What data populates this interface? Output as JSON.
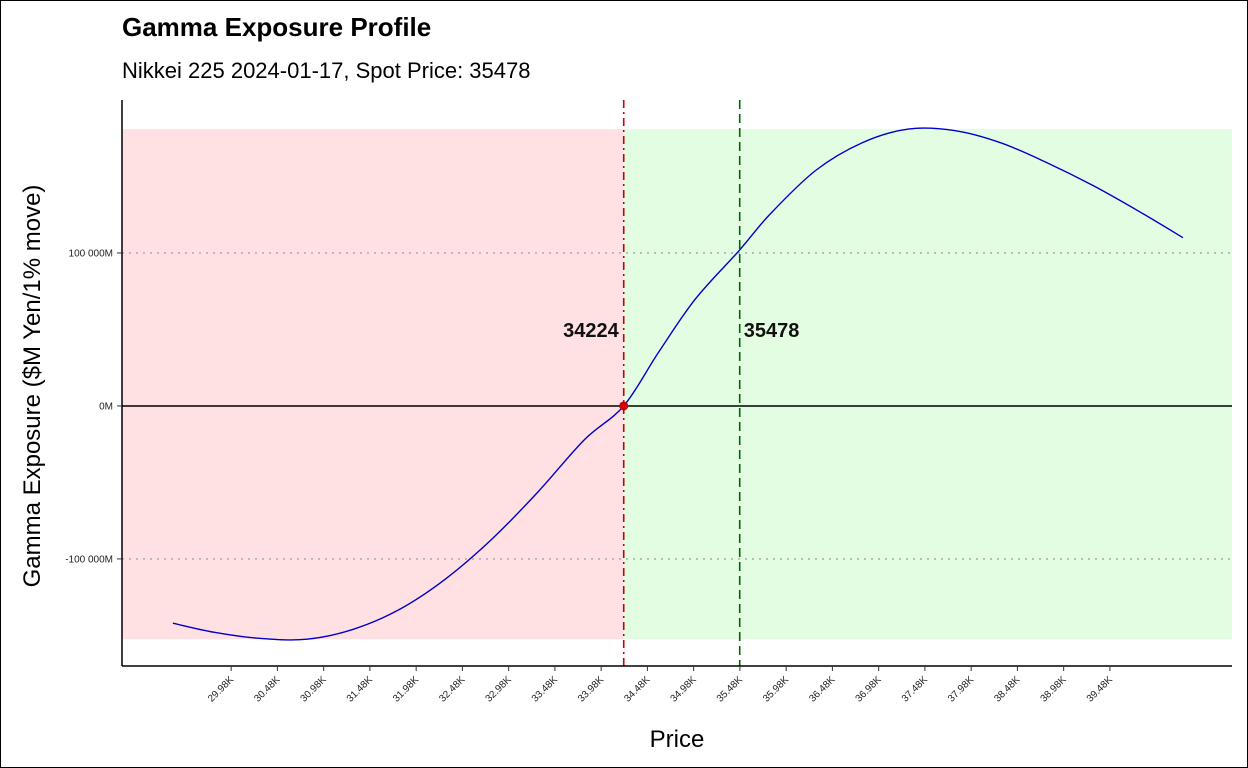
{
  "chart_data": {
    "type": "line",
    "title": "Gamma Exposure Profile",
    "subtitle": "Nikkei 225 2024-01-17, Spot Price: 35478",
    "xlabel": "Price",
    "ylabel": "Gamma Exposure ($M Yen/1% move)",
    "xlim": [
      28800,
      40800
    ],
    "ylim": [
      -170000,
      200000
    ],
    "x_ticks": [
      29980,
      30480,
      30980,
      31480,
      31980,
      32480,
      32980,
      33480,
      33980,
      34480,
      34980,
      35480,
      35980,
      36480,
      36980,
      37480,
      37980,
      38480,
      38980,
      39480
    ],
    "x_tick_labels": [
      "29.98K",
      "30.48K",
      "30.98K",
      "31.48K",
      "31.98K",
      "32.48K",
      "32.98K",
      "33.48K",
      "33.98K",
      "34.48K",
      "34.98K",
      "35.48K",
      "35.98K",
      "36.48K",
      "36.98K",
      "37.48K",
      "37.98K",
      "38.48K",
      "38.98K",
      "39.48K"
    ],
    "y_ticks": [
      -100000,
      0,
      100000
    ],
    "y_tick_labels": [
      "-100 000M",
      "0M",
      "100 000M"
    ],
    "grid": "horizontal-dotted",
    "series": [
      {
        "color": "#0000cc",
        "x": [
          29350,
          29800,
          30300,
          30800,
          31300,
          31800,
          32300,
          32800,
          33300,
          33800,
          34224,
          34600,
          35000,
          35478,
          35800,
          36300,
          36800,
          37300,
          37800,
          38300,
          38800,
          39300,
          39800,
          40270
        ],
        "y": [
          -142000,
          -148000,
          -152000,
          -152500,
          -146000,
          -133000,
          -113000,
          -87000,
          -56000,
          -22000,
          0,
          35000,
          70000,
          102000,
          125000,
          154000,
          172000,
          181000,
          180000,
          172000,
          159000,
          144000,
          127000,
          110000
        ]
      }
    ],
    "zero_gamma": {
      "value": 34224,
      "label": "34224",
      "color": "#cc0000"
    },
    "spot": {
      "value": 35478,
      "label": "35478",
      "color": "#006600"
    },
    "negative_region": {
      "x": [
        28800,
        34224
      ],
      "y": [
        -152500,
        181000
      ],
      "color": "#ffe0e3"
    },
    "positive_region": {
      "x": [
        34224,
        40800
      ],
      "y": [
        -152500,
        181000
      ],
      "color": "#e2fde2"
    }
  }
}
